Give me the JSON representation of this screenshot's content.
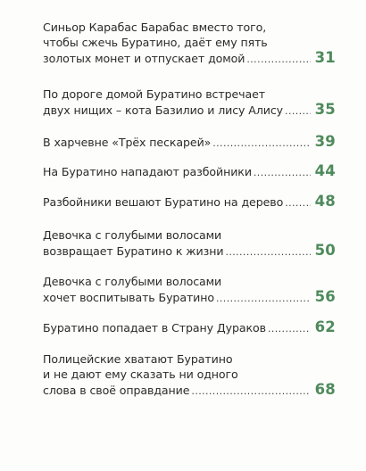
{
  "toc": {
    "entries": [
      {
        "lines": [
          "Синьор Карабас Барабас вместо того,",
          "чтобы сжечь Буратино, даёт ему пять"
        ],
        "last": "золотых монет и отпускает домой",
        "page": "31"
      },
      {
        "lines": [
          "По дороге домой Буратино встречает"
        ],
        "last": "двух нищих – кота Базилио и лису Алису",
        "page": "35"
      },
      {
        "lines": [],
        "last": "В харчевне «Трёх пескарей»",
        "page": "39"
      },
      {
        "lines": [],
        "last": "На Буратино нападают разбойники",
        "page": "44"
      },
      {
        "lines": [],
        "last": "Разбойники вешают Буратино на дерево",
        "page": "48"
      },
      {
        "lines": [
          "Девочка с голубыми волосами"
        ],
        "last": "возвращает Буратино к жизни",
        "page": "50"
      },
      {
        "lines": [
          "Девочка с голубыми волосами"
        ],
        "last": "хочет воспитывать Буратино",
        "page": "56"
      },
      {
        "lines": [],
        "last": "Буратино попадает в Страну Дураков",
        "page": "62"
      },
      {
        "lines": [
          "Полицейские хватают Буратино",
          "и не дают ему сказать ни одного"
        ],
        "last": "слова в своё оправдание",
        "page": "68"
      }
    ]
  }
}
